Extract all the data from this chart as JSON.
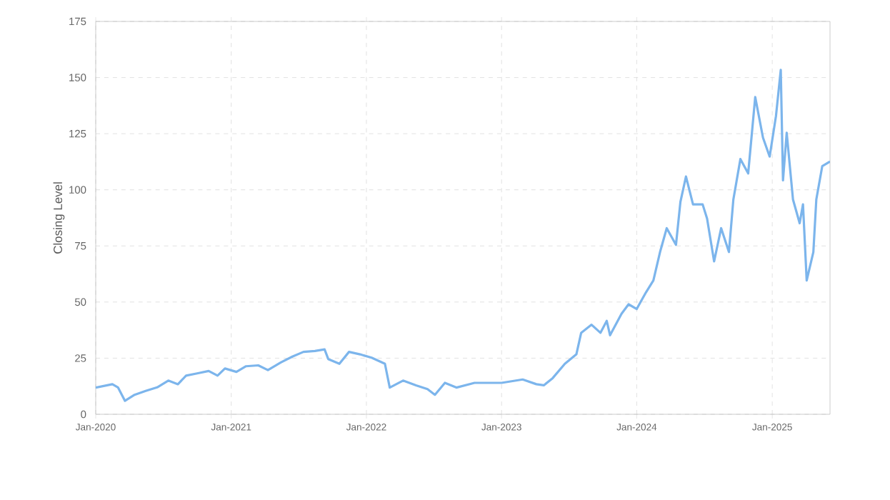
{
  "chart_data": {
    "type": "line",
    "ylabel": "Closing Level",
    "x": [
      "2020-01-01",
      "2020-02-15",
      "2020-03-01",
      "2020-03-20",
      "2020-04-15",
      "2020-05-15",
      "2020-06-15",
      "2020-07-15",
      "2020-08-10",
      "2020-09-01",
      "2020-10-01",
      "2020-11-01",
      "2020-11-25",
      "2020-12-15",
      "2021-01-15",
      "2021-02-10",
      "2021-03-15",
      "2021-04-10",
      "2021-05-15",
      "2021-06-15",
      "2021-07-15",
      "2021-08-15",
      "2021-09-10",
      "2021-09-20",
      "2021-10-20",
      "2021-11-15",
      "2021-12-15",
      "2022-01-15",
      "2022-02-20",
      "2022-03-05",
      "2022-04-10",
      "2022-05-15",
      "2022-06-15",
      "2022-07-05",
      "2022-08-01",
      "2022-09-01",
      "2022-10-20",
      "2023-01-01",
      "2023-02-27",
      "2023-04-05",
      "2023-04-25",
      "2023-05-19",
      "2023-06-21",
      "2023-07-22",
      "2023-08-04",
      "2023-09-01",
      "2023-09-25",
      "2023-10-12",
      "2023-10-21",
      "2023-11-21",
      "2023-12-10",
      "2024-01-01",
      "2024-01-26",
      "2024-02-15",
      "2024-03-04",
      "2024-03-22",
      "2024-04-16",
      "2024-04-28",
      "2024-05-13",
      "2024-06-01",
      "2024-06-27",
      "2024-07-09",
      "2024-07-28",
      "2024-08-16",
      "2024-09-06",
      "2024-09-18",
      "2024-10-07",
      "2024-10-28",
      "2024-11-16",
      "2024-12-07",
      "2024-12-25",
      "2025-01-11",
      "2025-01-24",
      "2025-01-30",
      "2025-02-09",
      "2025-02-26",
      "2025-03-16",
      "2025-03-25",
      "2025-04-04",
      "2025-04-22",
      "2025-04-30",
      "2025-05-16",
      "2025-06-06"
    ],
    "series": [
      {
        "color": "#7cb5ec",
        "values": [
          11.9,
          13.4,
          12,
          6,
          8.7,
          10.4,
          12,
          15,
          13.4,
          17.2,
          18.2,
          19.3,
          17.2,
          20.4,
          18.9,
          21.4,
          21.8,
          19.7,
          23.1,
          25.7,
          27.8,
          28.2,
          28.9,
          24.6,
          22.5,
          27.8,
          26.7,
          25.2,
          22.5,
          11.9,
          15,
          12.9,
          11.2,
          8.7,
          14,
          11.9,
          14,
          14,
          15.5,
          13.4,
          12.9,
          16.1,
          22.5,
          26.7,
          36.3,
          39.9,
          36.3,
          41.6,
          35.2,
          44.8,
          49,
          46.9,
          54.3,
          59.6,
          72.3,
          82.9,
          75.5,
          94.6,
          105.9,
          93.5,
          93.5,
          87.2,
          68.1,
          82.9,
          72.3,
          95.7,
          113.7,
          107.3,
          141.3,
          123.2,
          114.8,
          132.8,
          153.4,
          104.2,
          125.4,
          95.7,
          85.1,
          93.5,
          59.6,
          72.3,
          95.7,
          110.5,
          112.6
        ]
      }
    ],
    "xlim": [
      "2020-01-01",
      "2025-06-06"
    ],
    "xticks": [
      {
        "value": "2020-01-01",
        "label": "Jan-2020"
      },
      {
        "value": "2021-01-01",
        "label": "Jan-2021"
      },
      {
        "value": "2022-01-01",
        "label": "Jan-2022"
      },
      {
        "value": "2023-01-01",
        "label": "Jan-2023"
      },
      {
        "value": "2024-01-01",
        "label": "Jan-2024"
      },
      {
        "value": "2025-01-01",
        "label": "Jan-2025"
      }
    ],
    "ylim": [
      0,
      175
    ],
    "yticks": [
      0,
      25,
      50,
      75,
      100,
      125,
      150,
      175
    ],
    "grid": true,
    "line_style": "solid",
    "marker": "none"
  }
}
